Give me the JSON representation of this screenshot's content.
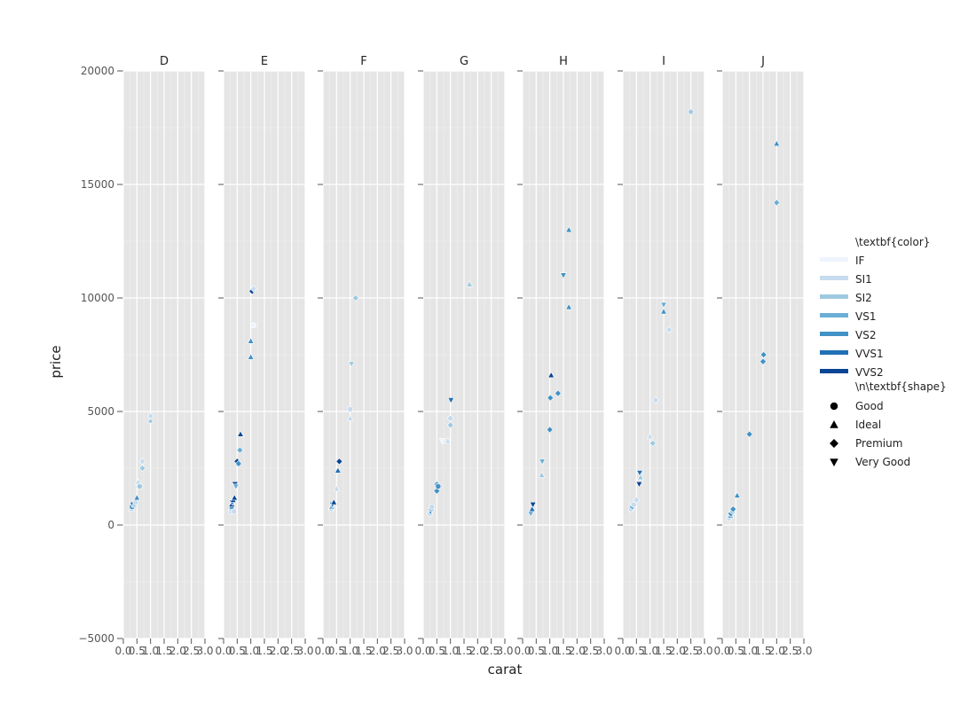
{
  "chart_data": {
    "type": "scatter",
    "facet_by": "color",
    "facets": [
      "D",
      "E",
      "F",
      "G",
      "H",
      "I",
      "J"
    ],
    "xlabel": "carat",
    "ylabel": "price",
    "xlim": [
      0,
      3
    ],
    "ylim": [
      -5000,
      20000
    ],
    "x_ticks": [
      0.0,
      0.5,
      1.0,
      1.5,
      2.0,
      2.5,
      3.0
    ],
    "x_tick_labels": [
      "0.0",
      "0.5",
      "1.0",
      "1.5",
      "2.0",
      "2.5",
      "3.0"
    ],
    "y_ticks": [
      -5000,
      0,
      5000,
      10000,
      15000,
      20000
    ],
    "y_tick_labels": [
      "−5000",
      "0",
      "5000",
      "10000",
      "15000",
      "20000"
    ],
    "grid": true,
    "legend_placement": "right",
    "legend": {
      "color_title": "\\textbf{color}",
      "shape_title": "\\n\\textbf{shape}",
      "color_entries": [
        {
          "label": "IF",
          "color": "#eef3fc"
        },
        {
          "label": "SI1",
          "color": "#c6dbef"
        },
        {
          "label": "SI2",
          "color": "#9ecae1"
        },
        {
          "label": "VS1",
          "color": "#6baed6"
        },
        {
          "label": "VS2",
          "color": "#4292c6"
        },
        {
          "label": "VVS1",
          "color": "#2171b5"
        },
        {
          "label": "VVS2",
          "color": "#084594"
        }
      ],
      "shape_entries": [
        {
          "label": "Good",
          "shape": "circle"
        },
        {
          "label": "Ideal",
          "shape": "triangle-up"
        },
        {
          "label": "Premium",
          "shape": "diamond"
        },
        {
          "label": "Very Good",
          "shape": "triangle-down"
        }
      ]
    },
    "points": {
      "D": [
        {
          "x": 0.3,
          "y": 700,
          "clarity": "SI1",
          "cut": "Ideal"
        },
        {
          "x": 0.32,
          "y": 800,
          "clarity": "VS2",
          "cut": "Good"
        },
        {
          "x": 0.35,
          "y": 900,
          "clarity": "VVS1",
          "cut": "Very Good"
        },
        {
          "x": 0.4,
          "y": 900,
          "clarity": "SI2",
          "cut": "Ideal"
        },
        {
          "x": 0.45,
          "y": 1000,
          "clarity": "SI1",
          "cut": "Good"
        },
        {
          "x": 0.5,
          "y": 1200,
          "clarity": "VS2",
          "cut": "Ideal"
        },
        {
          "x": 0.55,
          "y": 1900,
          "clarity": "SI1",
          "cut": "Ideal"
        },
        {
          "x": 0.6,
          "y": 1700,
          "clarity": "SI2",
          "cut": "Good"
        },
        {
          "x": 0.7,
          "y": 2500,
          "clarity": "SI2",
          "cut": "Premium"
        },
        {
          "x": 0.7,
          "y": 2800,
          "clarity": "SI1",
          "cut": "Premium"
        },
        {
          "x": 1.0,
          "y": 4600,
          "clarity": "SI2",
          "cut": "Ideal"
        },
        {
          "x": 1.0,
          "y": 4800,
          "clarity": "SI1",
          "cut": "Premium"
        }
      ],
      "E": [
        {
          "x": 0.27,
          "y": 600,
          "clarity": "SI1",
          "cut": "Good"
        },
        {
          "x": 0.3,
          "y": 700,
          "clarity": "SI2",
          "cut": "Good"
        },
        {
          "x": 0.3,
          "y": 800,
          "clarity": "VS2",
          "cut": "Ideal"
        },
        {
          "x": 0.3,
          "y": 900,
          "clarity": "VVS2",
          "cut": "Ideal"
        },
        {
          "x": 0.32,
          "y": 1000,
          "clarity": "VVS1",
          "cut": "Very Good"
        },
        {
          "x": 0.35,
          "y": 1100,
          "clarity": "VVS2",
          "cut": "Ideal"
        },
        {
          "x": 0.38,
          "y": 600,
          "clarity": "SI1",
          "cut": "Good"
        },
        {
          "x": 0.4,
          "y": 1200,
          "clarity": "VVS2",
          "cut": "Ideal"
        },
        {
          "x": 0.42,
          "y": 1800,
          "clarity": "VVS2",
          "cut": "Very Good"
        },
        {
          "x": 0.45,
          "y": 1700,
          "clarity": "VS1",
          "cut": "Very Good"
        },
        {
          "x": 0.5,
          "y": 2800,
          "clarity": "VVS2",
          "cut": "Premium"
        },
        {
          "x": 0.55,
          "y": 2700,
          "clarity": "VS2",
          "cut": "Premium"
        },
        {
          "x": 0.6,
          "y": 3300,
          "clarity": "VS1",
          "cut": "Premium"
        },
        {
          "x": 0.62,
          "y": 4000,
          "clarity": "VVS2",
          "cut": "Ideal"
        },
        {
          "x": 1.0,
          "y": 7400,
          "clarity": "VS2",
          "cut": "Ideal"
        },
        {
          "x": 1.0,
          "y": 8100,
          "clarity": "VS2",
          "cut": "Ideal"
        },
        {
          "x": 1.05,
          "y": 10300,
          "clarity": "VVS2",
          "cut": "Premium"
        },
        {
          "x": 1.1,
          "y": 10400,
          "clarity": "SI1",
          "cut": "Premium"
        },
        {
          "x": 1.1,
          "y": 8800,
          "clarity": "IF",
          "cut": "Good"
        }
      ],
      "F": [
        {
          "x": 0.3,
          "y": 700,
          "clarity": "SI1",
          "cut": "Good"
        },
        {
          "x": 0.32,
          "y": 800,
          "clarity": "VS1",
          "cut": "Ideal"
        },
        {
          "x": 0.35,
          "y": 900,
          "clarity": "VVS1",
          "cut": "Very Good"
        },
        {
          "x": 0.4,
          "y": 1000,
          "clarity": "VVS2",
          "cut": "Ideal"
        },
        {
          "x": 0.5,
          "y": 1600,
          "clarity": "SI1",
          "cut": "Ideal"
        },
        {
          "x": 0.55,
          "y": 2400,
          "clarity": "VVS1",
          "cut": "Ideal"
        },
        {
          "x": 0.6,
          "y": 2800,
          "clarity": "VVS2",
          "cut": "Premium"
        },
        {
          "x": 1.0,
          "y": 4700,
          "clarity": "SI1",
          "cut": "Ideal"
        },
        {
          "x": 1.0,
          "y": 5100,
          "clarity": "SI1",
          "cut": "Good"
        },
        {
          "x": 1.05,
          "y": 7100,
          "clarity": "SI2",
          "cut": "Very Good"
        },
        {
          "x": 1.2,
          "y": 10000,
          "clarity": "SI2",
          "cut": "Premium"
        }
      ],
      "G": [
        {
          "x": 0.25,
          "y": 500,
          "clarity": "SI1",
          "cut": "Good"
        },
        {
          "x": 0.27,
          "y": 600,
          "clarity": "VVS1",
          "cut": "Very Good"
        },
        {
          "x": 0.3,
          "y": 700,
          "clarity": "SI2",
          "cut": "Good"
        },
        {
          "x": 0.32,
          "y": 800,
          "clarity": "SI1",
          "cut": "Good"
        },
        {
          "x": 0.5,
          "y": 1500,
          "clarity": "VS2",
          "cut": "Premium"
        },
        {
          "x": 0.5,
          "y": 1800,
          "clarity": "VS1",
          "cut": "Premium"
        },
        {
          "x": 0.55,
          "y": 1700,
          "clarity": "VS2",
          "cut": "Good"
        },
        {
          "x": 0.7,
          "y": 3700,
          "clarity": "IF",
          "cut": "Very Good"
        },
        {
          "x": 0.9,
          "y": 3700,
          "clarity": "SI1",
          "cut": "Ideal"
        },
        {
          "x": 1.0,
          "y": 4400,
          "clarity": "SI2",
          "cut": "Premium"
        },
        {
          "x": 1.0,
          "y": 4700,
          "clarity": "SI1",
          "cut": "Good"
        },
        {
          "x": 1.02,
          "y": 5500,
          "clarity": "VVS1",
          "cut": "Very Good"
        },
        {
          "x": 1.7,
          "y": 10600,
          "clarity": "SI2",
          "cut": "Ideal"
        }
      ],
      "H": [
        {
          "x": 0.3,
          "y": 500,
          "clarity": "VS1",
          "cut": "Very Good"
        },
        {
          "x": 0.35,
          "y": 700,
          "clarity": "VVS1",
          "cut": "Ideal"
        },
        {
          "x": 0.38,
          "y": 900,
          "clarity": "VVS2",
          "cut": "Very Good"
        },
        {
          "x": 0.7,
          "y": 2200,
          "clarity": "SI2",
          "cut": "Ideal"
        },
        {
          "x": 0.72,
          "y": 2800,
          "clarity": "VS1",
          "cut": "Very Good"
        },
        {
          "x": 1.0,
          "y": 4200,
          "clarity": "VS2",
          "cut": "Premium"
        },
        {
          "x": 1.02,
          "y": 5600,
          "clarity": "VS2",
          "cut": "Premium"
        },
        {
          "x": 1.05,
          "y": 6600,
          "clarity": "VVS2",
          "cut": "Ideal"
        },
        {
          "x": 1.3,
          "y": 5800,
          "clarity": "VS2",
          "cut": "Premium"
        },
        {
          "x": 1.5,
          "y": 11000,
          "clarity": "VS2",
          "cut": "Very Good"
        },
        {
          "x": 1.7,
          "y": 9600,
          "clarity": "VS2",
          "cut": "Ideal"
        },
        {
          "x": 1.7,
          "y": 13000,
          "clarity": "VS2",
          "cut": "Ideal"
        }
      ],
      "I": [
        {
          "x": 0.3,
          "y": 700,
          "clarity": "SI1",
          "cut": "Good"
        },
        {
          "x": 0.35,
          "y": 800,
          "clarity": "VS1",
          "cut": "Premium"
        },
        {
          "x": 0.4,
          "y": 900,
          "clarity": "SI1",
          "cut": "Good"
        },
        {
          "x": 0.5,
          "y": 1100,
          "clarity": "SI1",
          "cut": "Premium"
        },
        {
          "x": 0.6,
          "y": 1800,
          "clarity": "VVS2",
          "cut": "Very Good"
        },
        {
          "x": 0.62,
          "y": 2300,
          "clarity": "VVS1",
          "cut": "Very Good"
        },
        {
          "x": 0.65,
          "y": 2100,
          "clarity": "SI2",
          "cut": "Ideal"
        },
        {
          "x": 1.0,
          "y": 3900,
          "clarity": "SI1",
          "cut": "Ideal"
        },
        {
          "x": 1.1,
          "y": 3600,
          "clarity": "SI2",
          "cut": "Premium"
        },
        {
          "x": 1.2,
          "y": 5500,
          "clarity": "SI1",
          "cut": "Premium"
        },
        {
          "x": 1.5,
          "y": 9400,
          "clarity": "VS2",
          "cut": "Ideal"
        },
        {
          "x": 1.5,
          "y": 9700,
          "clarity": "VS1",
          "cut": "Very Good"
        },
        {
          "x": 1.7,
          "y": 8600,
          "clarity": "SI1",
          "cut": "Premium"
        },
        {
          "x": 2.5,
          "y": 18200,
          "clarity": "SI2",
          "cut": "Premium"
        }
      ],
      "J": [
        {
          "x": 0.25,
          "y": 300,
          "clarity": "SI1",
          "cut": "Good"
        },
        {
          "x": 0.3,
          "y": 400,
          "clarity": "VS1",
          "cut": "Ideal"
        },
        {
          "x": 0.32,
          "y": 500,
          "clarity": "VS2",
          "cut": "Premium"
        },
        {
          "x": 0.38,
          "y": 600,
          "clarity": "SI2",
          "cut": "Good"
        },
        {
          "x": 0.4,
          "y": 700,
          "clarity": "VS2",
          "cut": "Premium"
        },
        {
          "x": 0.55,
          "y": 1300,
          "clarity": "VS2",
          "cut": "Ideal"
        },
        {
          "x": 1.0,
          "y": 4000,
          "clarity": "VS2",
          "cut": "Premium"
        },
        {
          "x": 1.5,
          "y": 7200,
          "clarity": "VS2",
          "cut": "Premium"
        },
        {
          "x": 1.52,
          "y": 7500,
          "clarity": "VS2",
          "cut": "Premium"
        },
        {
          "x": 2.0,
          "y": 14200,
          "clarity": "VS1",
          "cut": "Premium"
        },
        {
          "x": 2.0,
          "y": 16800,
          "clarity": "VS2",
          "cut": "Ideal"
        }
      ]
    }
  }
}
